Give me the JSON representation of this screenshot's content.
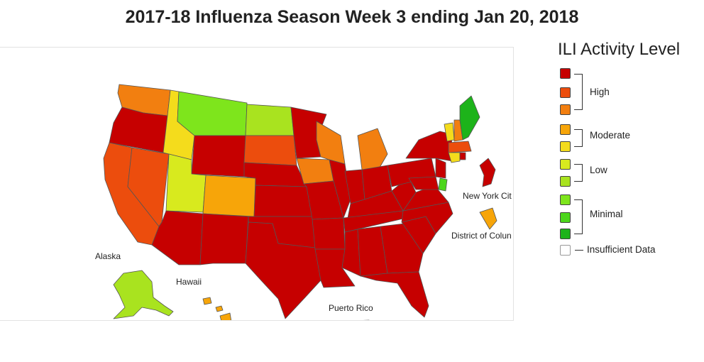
{
  "title": "2017-18 Influenza Season Week 3 ending Jan 20, 2018",
  "map": {
    "labels": {
      "alaska": "Alaska",
      "hawaii": "Hawaii",
      "puerto_rico": "Puerto Rico",
      "new_york_city": "New York Cit",
      "district_of_columbia": "District of Colun"
    },
    "fills": {
      "high_10": "#c60000",
      "high_9": "#ec4d0d",
      "high_8": "#f27f10",
      "moderate_7": "#f7a509",
      "moderate_6": "#f4dc1c",
      "low_5": "#d8ea1e",
      "low_4": "#a9e31f",
      "minimal_3": "#7ee51c",
      "minimal_2": "#4cd61c",
      "minimal_1": "#1db31a"
    }
  },
  "legend": {
    "title": "ILI Activity Level",
    "groups": {
      "high": "High",
      "moderate": "Moderate",
      "low": "Low",
      "minimal": "Minimal"
    },
    "insufficient": "Insufficient Data"
  }
}
